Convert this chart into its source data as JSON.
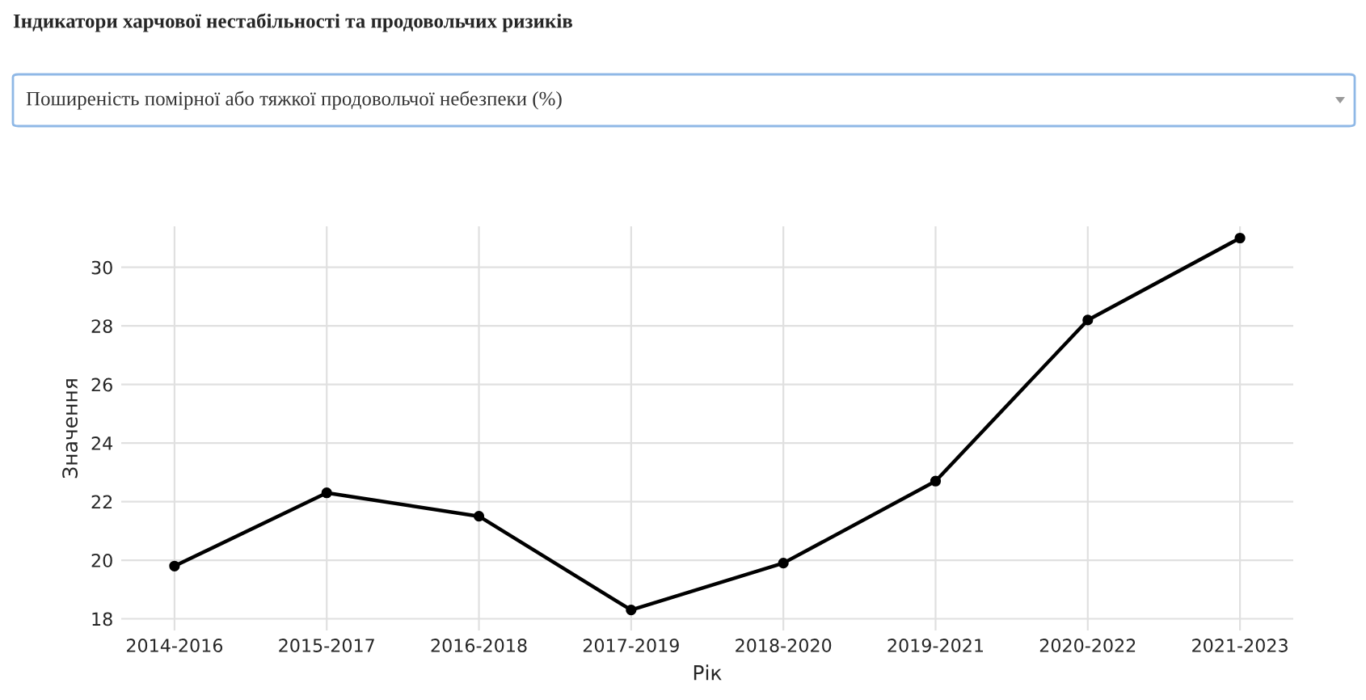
{
  "chart_data": {
    "type": "line",
    "title": "Індикатори харчової нестабільності та продовольчих ризиків",
    "subtitle": "Поширеність помірної або тяжкої продовольчої небезпеки (%)",
    "xlabel": "Рік",
    "ylabel": "Значення",
    "categories": [
      "2014-2016",
      "2015-2017",
      "2016-2018",
      "2017-2019",
      "2018-2020",
      "2019-2021",
      "2020-2022",
      "2021-2023"
    ],
    "series": [
      {
        "color": "#000000",
        "values": [
          19.8,
          22.3,
          21.5,
          18.3,
          19.9,
          22.7,
          28.2,
          31.0
        ]
      }
    ],
    "ylim": [
      17.6,
      31.4
    ],
    "yticks": [
      18,
      20,
      22,
      24,
      26,
      28,
      30
    ],
    "grid": true,
    "marker": "circle",
    "line_style": "solid"
  }
}
